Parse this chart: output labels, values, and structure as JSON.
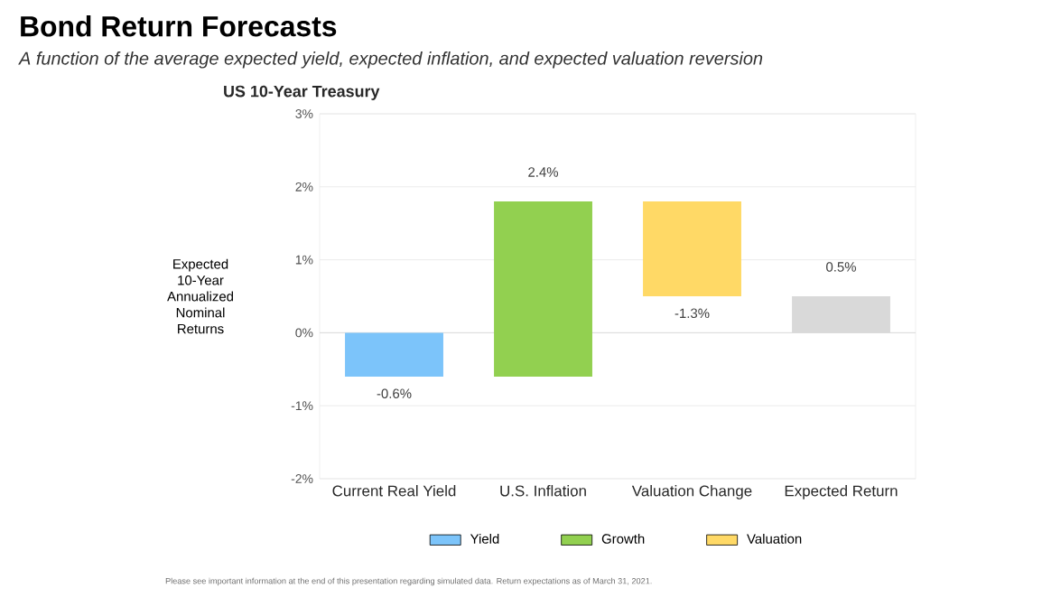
{
  "chart_data": {
    "type": "bar",
    "title": "Bond Return Forecasts",
    "subtitle": "A function of the average expected yield, expected inflation, and expected valuation reversion",
    "annotations": [
      "US 10-Year Treasury",
      "Please see important information at the end of this presentation regarding simulated data. Return expectations as of March 31, 2021."
    ],
    "ylabel": "Expected 10-Year Annualized Nominal Returns",
    "categories": [
      "Current Real Yield",
      "U.S. Inflation",
      "Valuation Change",
      "Expected Return"
    ],
    "series": [
      {
        "name": "Yield",
        "color": "#7cc4fa",
        "base": [
          0,
          null,
          null,
          null
        ],
        "values": [
          -0.6,
          null,
          null,
          null
        ],
        "value_labels": [
          "-0.6%",
          null,
          null,
          null
        ]
      },
      {
        "name": "Growth",
        "color": "#92d050",
        "base": [
          null,
          -0.6,
          null,
          null
        ],
        "values": [
          null,
          2.4,
          null,
          null
        ],
        "value_labels": [
          null,
          "2.4%",
          null,
          null
        ]
      },
      {
        "name": "Valuation",
        "color": "#ffd966",
        "base": [
          null,
          null,
          1.8,
          null
        ],
        "values": [
          null,
          null,
          -1.3,
          null
        ],
        "value_labels": [
          null,
          null,
          "-1.3%",
          null
        ]
      },
      {
        "color": "#d9d9d9",
        "base": [
          null,
          null,
          null,
          0
        ],
        "values": [
          null,
          null,
          null,
          0.5
        ],
        "value_labels": [
          null,
          null,
          null,
          "0.5%"
        ]
      }
    ],
    "ylim": [
      -2,
      3
    ],
    "yticks": [
      {
        "value": -2,
        "label": "-2%"
      },
      {
        "value": -1,
        "label": "-1%"
      },
      {
        "value": 0,
        "label": "0%"
      },
      {
        "value": 1,
        "label": "1%"
      },
      {
        "value": 2,
        "label": "2%"
      },
      {
        "value": 3,
        "label": "3%"
      }
    ],
    "grid": "y",
    "legend": "bottom"
  }
}
